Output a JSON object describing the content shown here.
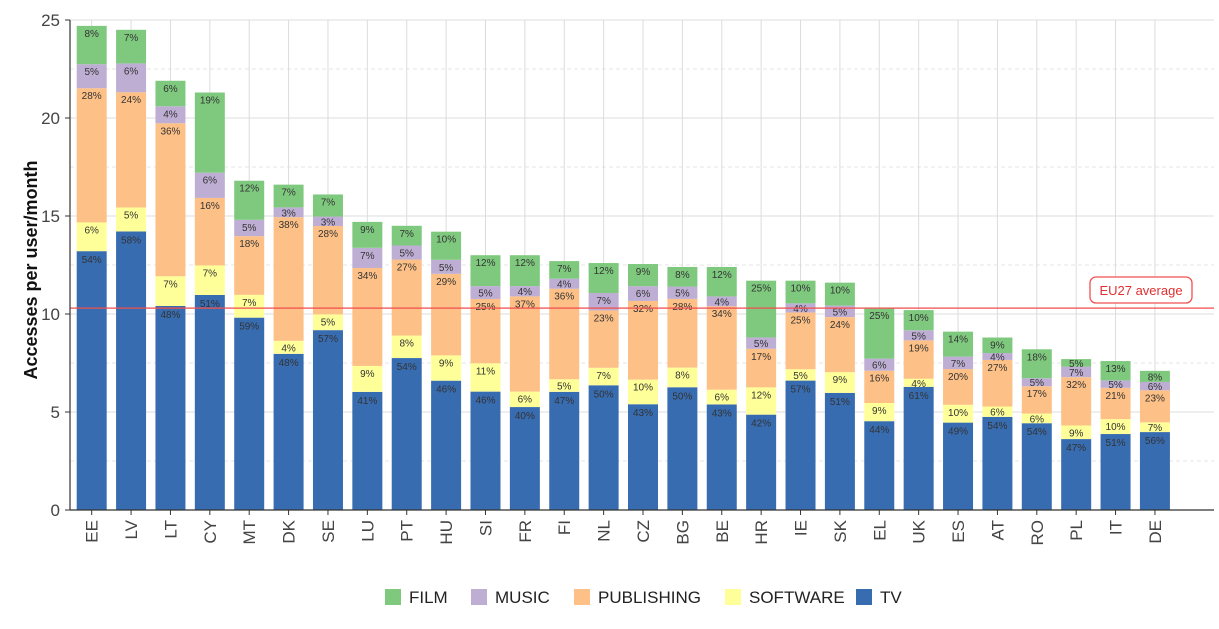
{
  "chart_data": {
    "type": "bar",
    "stacked": true,
    "title": "",
    "xlabel": "",
    "ylabel": "Accesses per user/month",
    "ylim": [
      0,
      25
    ],
    "yticks": [
      0,
      5,
      10,
      15,
      20,
      25
    ],
    "grid": true,
    "legend_position": "bottom",
    "categories": [
      "EE",
      "LV",
      "LT",
      "CY",
      "MT",
      "DK",
      "SE",
      "LU",
      "PT",
      "HU",
      "SI",
      "FR",
      "FI",
      "NL",
      "CZ",
      "BG",
      "BE",
      "HR",
      "IE",
      "SK",
      "EL",
      "UK",
      "ES",
      "AT",
      "RO",
      "PL",
      "IT",
      "DE"
    ],
    "totals": [
      24.7,
      24.5,
      21.9,
      21.3,
      16.8,
      16.6,
      16.1,
      14.7,
      14.5,
      14.2,
      13.0,
      13.0,
      12.7,
      12.6,
      12.55,
      12.4,
      12.4,
      11.7,
      11.7,
      11.6,
      10.3,
      10.2,
      9.1,
      8.8,
      8.2,
      7.7,
      7.6,
      7.1
    ],
    "series": [
      {
        "name": "TV",
        "color": "#386cb0",
        "percent": [
          54,
          58,
          48,
          51,
          59,
          48,
          57,
          41,
          54,
          46,
          46,
          40,
          47,
          50,
          43,
          50,
          43,
          42,
          57,
          51,
          44,
          61,
          49,
          54,
          54,
          47,
          51,
          56
        ]
      },
      {
        "name": "SOFTWARE",
        "color": "#ffff99",
        "percent": [
          6,
          5,
          7,
          7,
          7,
          4,
          5,
          9,
          8,
          9,
          11,
          6,
          5,
          7,
          10,
          8,
          6,
          12,
          5,
          9,
          9,
          4,
          10,
          6,
          6,
          9,
          10,
          7
        ]
      },
      {
        "name": "PUBLISHING",
        "color": "#fdc086",
        "percent": [
          28,
          24,
          36,
          16,
          18,
          38,
          28,
          34,
          27,
          29,
          25,
          37,
          36,
          23,
          32,
          28,
          34,
          17,
          25,
          24,
          16,
          19,
          20,
          27,
          17,
          32,
          21,
          23
        ]
      },
      {
        "name": "MUSIC",
        "color": "#beaed4",
        "percent": [
          5,
          6,
          4,
          6,
          5,
          3,
          3,
          7,
          5,
          5,
          5,
          4,
          4,
          7,
          6,
          5,
          4,
          5,
          4,
          5,
          6,
          5,
          7,
          4,
          5,
          7,
          5,
          6
        ]
      },
      {
        "name": "FILM",
        "color": "#7fc97f",
        "percent": [
          8,
          7,
          6,
          19,
          12,
          7,
          7,
          9,
          7,
          10,
          12,
          12,
          7,
          12,
          9,
          8,
          12,
          25,
          10,
          10,
          25,
          10,
          14,
          9,
          18,
          5,
          13,
          8
        ]
      }
    ],
    "legend_order": [
      "FILM",
      "MUSIC",
      "PUBLISHING",
      "SOFTWARE",
      "TV"
    ],
    "reference_line": {
      "label": "EU27 average",
      "value": 10.3,
      "color": "#f05050"
    }
  }
}
